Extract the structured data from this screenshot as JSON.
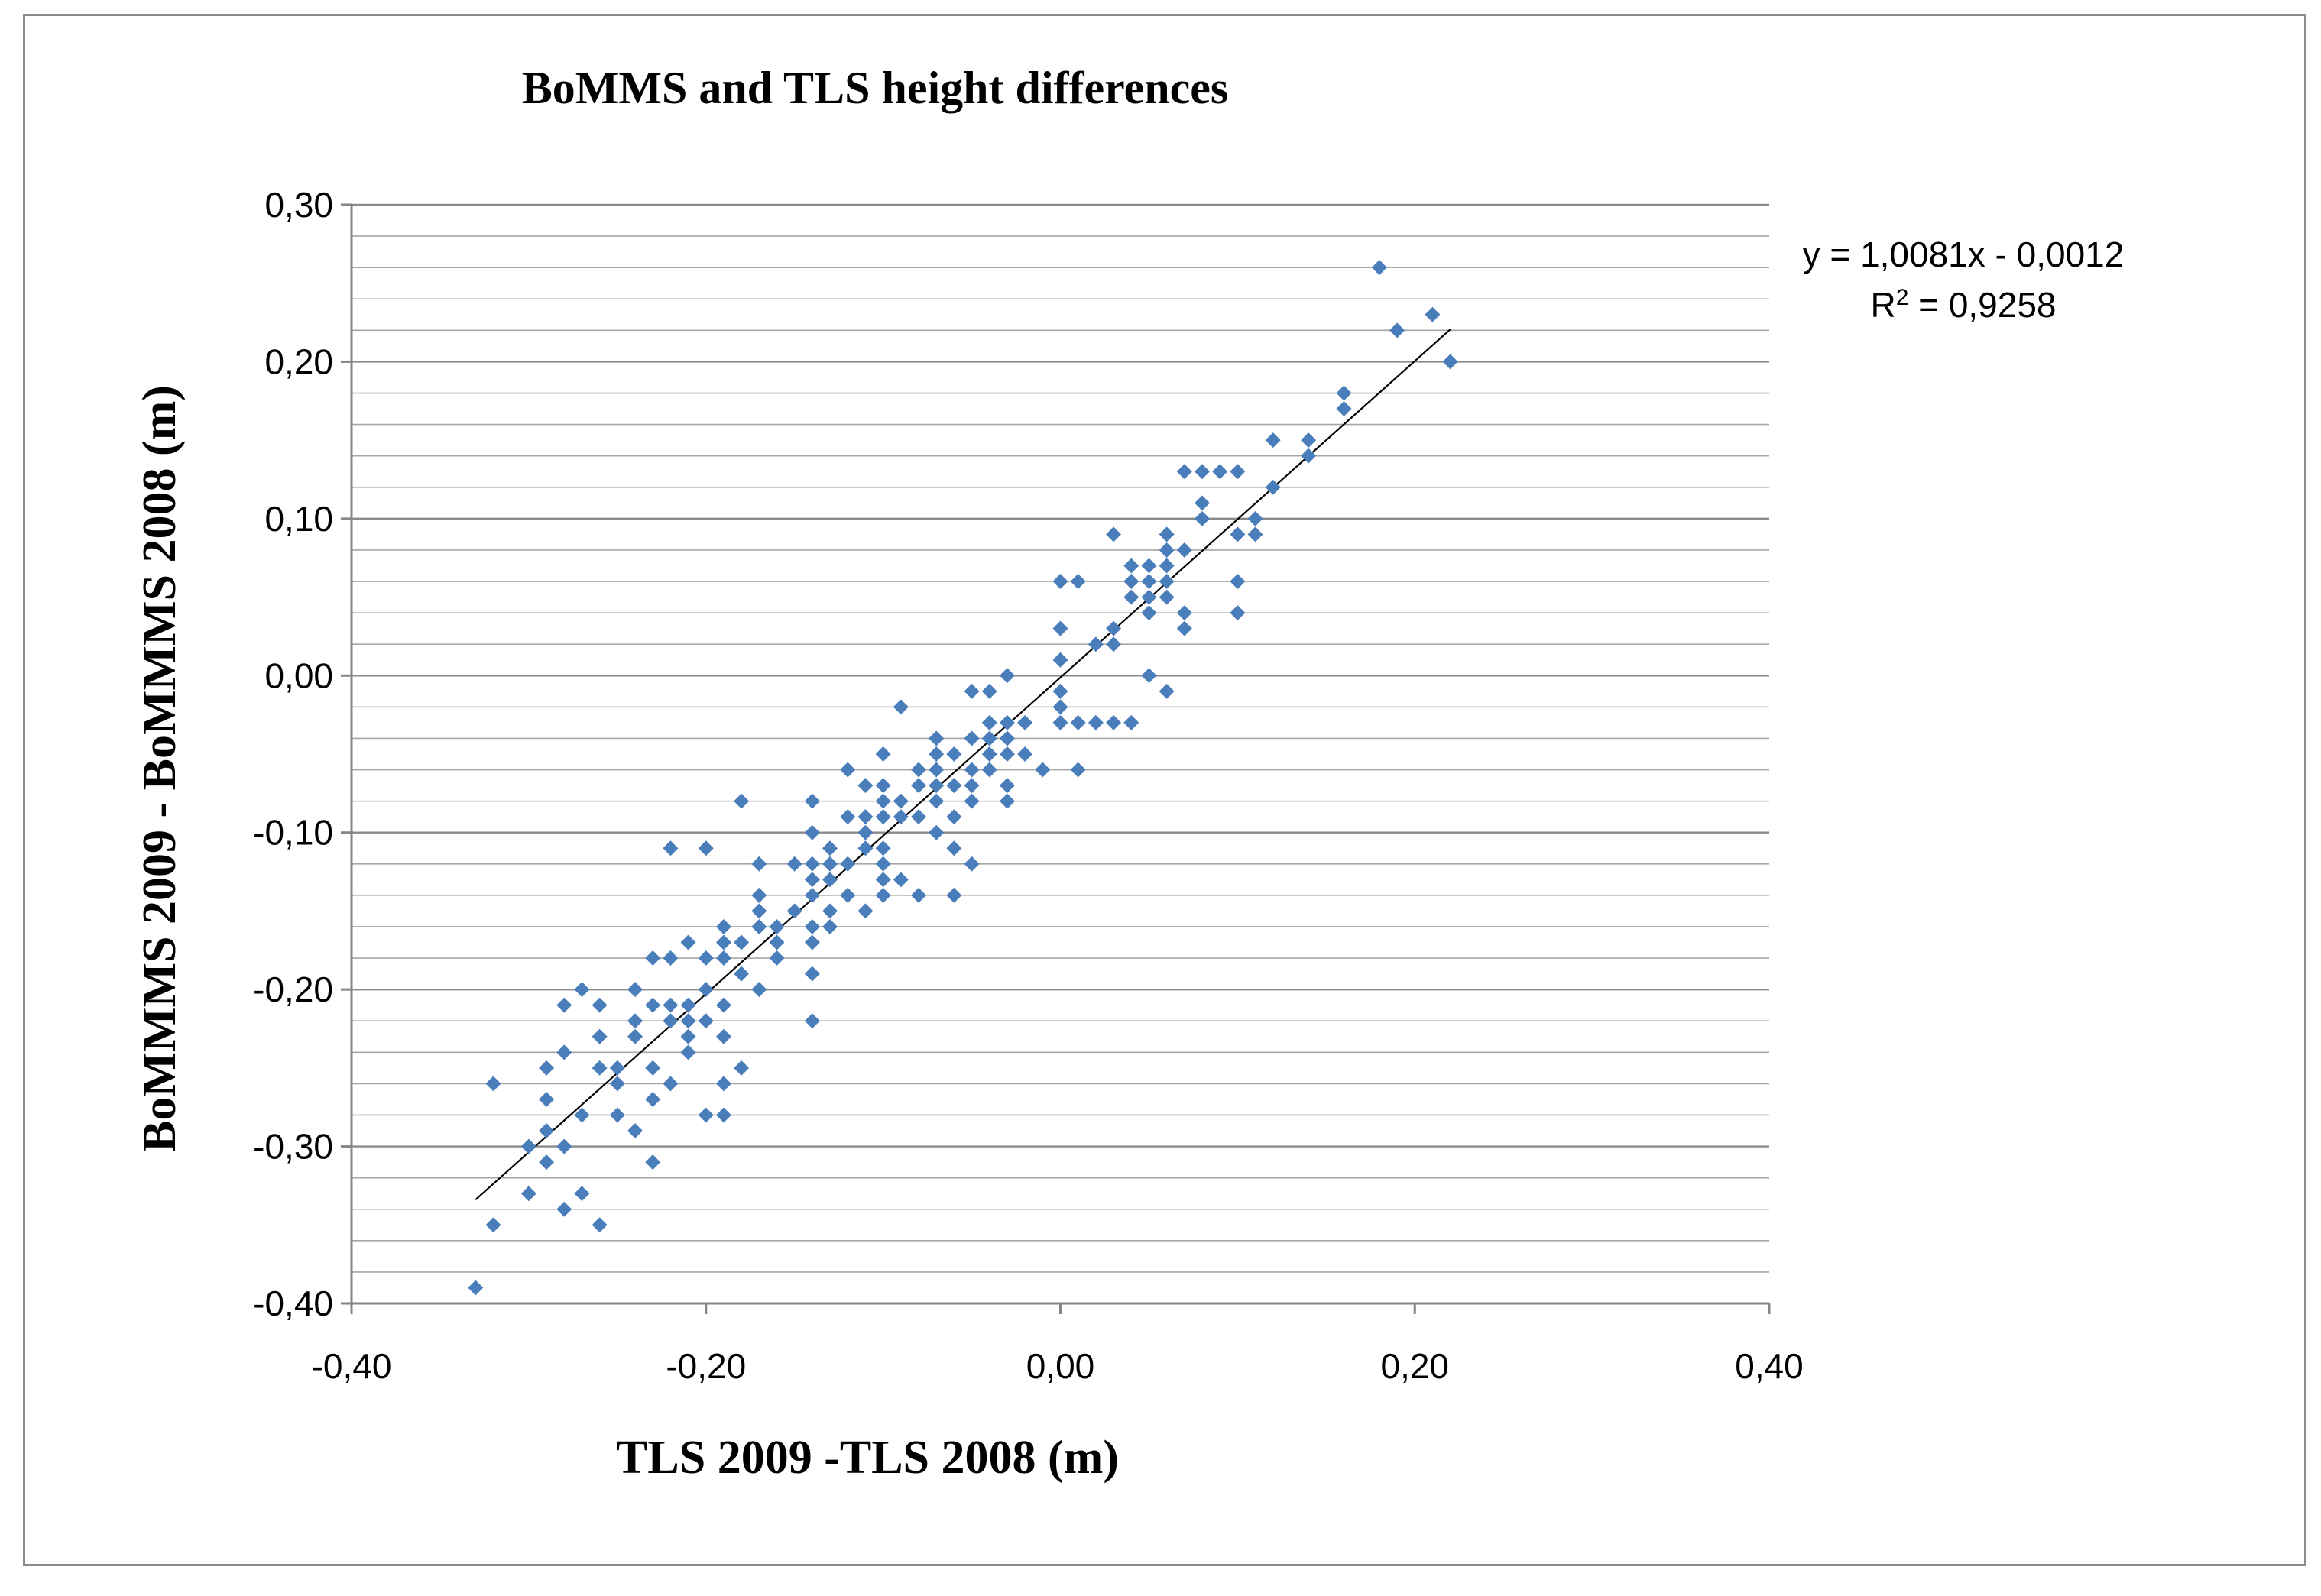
{
  "chart_data": {
    "type": "scatter",
    "title": "BoMMS and TLS height differences",
    "xlabel": "TLS 2009 -TLS 2008 (m)",
    "ylabel": "BoMMMS 2009 -  BoMMMS 2008 (m)",
    "xlim": [
      -0.4,
      0.4
    ],
    "ylim": [
      -0.4,
      0.3
    ],
    "x_ticks": [
      -0.4,
      -0.2,
      0.0,
      0.2,
      0.4
    ],
    "x_tick_labels": [
      "-0,40",
      "-0,20",
      "0,00",
      "0,20",
      "0,40"
    ],
    "y_ticks": [
      0.3,
      0.2,
      0.1,
      0.0,
      -0.1,
      -0.2,
      -0.3,
      -0.4
    ],
    "y_tick_labels": [
      "0,30",
      "0,20",
      "0,10",
      "0,00",
      "-0,10",
      "-0,20",
      "-0,30",
      "-0,40"
    ],
    "minor_gridline_step": 0.02,
    "major_gridline_step": 0.1,
    "grid": true,
    "marker": "diamond",
    "series": [
      {
        "name": "height differences",
        "color": "#4a7ebb",
        "points": [
          [
            0.18,
            0.26
          ],
          [
            0.21,
            0.23
          ],
          [
            0.19,
            0.22
          ],
          [
            0.22,
            0.2
          ],
          [
            0.16,
            0.18
          ],
          [
            0.16,
            0.17
          ],
          [
            0.12,
            0.15
          ],
          [
            0.14,
            0.15
          ],
          [
            0.14,
            0.14
          ],
          [
            0.07,
            0.13
          ],
          [
            0.08,
            0.13
          ],
          [
            0.09,
            0.13
          ],
          [
            0.1,
            0.13
          ],
          [
            0.12,
            0.12
          ],
          [
            0.08,
            0.11
          ],
          [
            0.08,
            0.1
          ],
          [
            0.11,
            0.1
          ],
          [
            0.03,
            0.09
          ],
          [
            0.06,
            0.09
          ],
          [
            0.1,
            0.09
          ],
          [
            0.11,
            0.09
          ],
          [
            0.06,
            0.08
          ],
          [
            0.07,
            0.08
          ],
          [
            0.04,
            0.07
          ],
          [
            0.05,
            0.07
          ],
          [
            0.06,
            0.07
          ],
          [
            0.04,
            0.06
          ],
          [
            0.05,
            0.06
          ],
          [
            0.06,
            0.06
          ],
          [
            0.1,
            0.06
          ],
          [
            0.0,
            0.06
          ],
          [
            0.01,
            0.06
          ],
          [
            0.04,
            0.05
          ],
          [
            0.05,
            0.05
          ],
          [
            0.06,
            0.05
          ],
          [
            0.05,
            0.04
          ],
          [
            0.07,
            0.04
          ],
          [
            0.1,
            0.04
          ],
          [
            0.03,
            0.03
          ],
          [
            0.07,
            0.03
          ],
          [
            0.0,
            0.03
          ],
          [
            0.02,
            0.02
          ],
          [
            0.03,
            0.02
          ],
          [
            0.0,
            0.01
          ],
          [
            0.05,
            0.0
          ],
          [
            -0.03,
            0.0
          ],
          [
            0.06,
            -0.01
          ],
          [
            0.0,
            -0.01
          ],
          [
            -0.04,
            -0.01
          ],
          [
            -0.05,
            -0.01
          ],
          [
            0.0,
            -0.02
          ],
          [
            -0.09,
            -0.02
          ],
          [
            0.0,
            -0.03
          ],
          [
            0.01,
            -0.03
          ],
          [
            0.02,
            -0.03
          ],
          [
            0.03,
            -0.03
          ],
          [
            0.04,
            -0.03
          ],
          [
            -0.02,
            -0.03
          ],
          [
            -0.03,
            -0.03
          ],
          [
            -0.04,
            -0.03
          ],
          [
            -0.03,
            -0.04
          ],
          [
            -0.04,
            -0.04
          ],
          [
            -0.05,
            -0.04
          ],
          [
            -0.07,
            -0.04
          ],
          [
            -0.02,
            -0.05
          ],
          [
            -0.03,
            -0.05
          ],
          [
            -0.04,
            -0.05
          ],
          [
            -0.06,
            -0.05
          ],
          [
            -0.07,
            -0.05
          ],
          [
            -0.1,
            -0.05
          ],
          [
            0.01,
            -0.06
          ],
          [
            -0.01,
            -0.06
          ],
          [
            -0.04,
            -0.06
          ],
          [
            -0.05,
            -0.06
          ],
          [
            -0.07,
            -0.06
          ],
          [
            -0.08,
            -0.06
          ],
          [
            -0.12,
            -0.06
          ],
          [
            -0.03,
            -0.07
          ],
          [
            -0.05,
            -0.07
          ],
          [
            -0.06,
            -0.07
          ],
          [
            -0.07,
            -0.07
          ],
          [
            -0.08,
            -0.07
          ],
          [
            -0.1,
            -0.07
          ],
          [
            -0.11,
            -0.07
          ],
          [
            -0.03,
            -0.08
          ],
          [
            -0.05,
            -0.08
          ],
          [
            -0.07,
            -0.08
          ],
          [
            -0.09,
            -0.08
          ],
          [
            -0.1,
            -0.08
          ],
          [
            -0.14,
            -0.08
          ],
          [
            -0.18,
            -0.08
          ],
          [
            -0.06,
            -0.09
          ],
          [
            -0.08,
            -0.09
          ],
          [
            -0.09,
            -0.09
          ],
          [
            -0.1,
            -0.09
          ],
          [
            -0.11,
            -0.09
          ],
          [
            -0.12,
            -0.09
          ],
          [
            -0.07,
            -0.1
          ],
          [
            -0.11,
            -0.1
          ],
          [
            -0.14,
            -0.1
          ],
          [
            -0.06,
            -0.11
          ],
          [
            -0.1,
            -0.11
          ],
          [
            -0.11,
            -0.11
          ],
          [
            -0.13,
            -0.11
          ],
          [
            -0.2,
            -0.11
          ],
          [
            -0.22,
            -0.11
          ],
          [
            -0.05,
            -0.12
          ],
          [
            -0.1,
            -0.12
          ],
          [
            -0.12,
            -0.12
          ],
          [
            -0.13,
            -0.12
          ],
          [
            -0.14,
            -0.12
          ],
          [
            -0.15,
            -0.12
          ],
          [
            -0.17,
            -0.12
          ],
          [
            -0.09,
            -0.13
          ],
          [
            -0.1,
            -0.13
          ],
          [
            -0.13,
            -0.13
          ],
          [
            -0.14,
            -0.13
          ],
          [
            -0.06,
            -0.14
          ],
          [
            -0.08,
            -0.14
          ],
          [
            -0.1,
            -0.14
          ],
          [
            -0.12,
            -0.14
          ],
          [
            -0.14,
            -0.14
          ],
          [
            -0.17,
            -0.14
          ],
          [
            -0.11,
            -0.15
          ],
          [
            -0.13,
            -0.15
          ],
          [
            -0.15,
            -0.15
          ],
          [
            -0.17,
            -0.15
          ],
          [
            -0.13,
            -0.16
          ],
          [
            -0.14,
            -0.16
          ],
          [
            -0.16,
            -0.16
          ],
          [
            -0.17,
            -0.16
          ],
          [
            -0.19,
            -0.16
          ],
          [
            -0.14,
            -0.17
          ],
          [
            -0.16,
            -0.17
          ],
          [
            -0.18,
            -0.17
          ],
          [
            -0.19,
            -0.17
          ],
          [
            -0.21,
            -0.17
          ],
          [
            -0.16,
            -0.18
          ],
          [
            -0.19,
            -0.18
          ],
          [
            -0.2,
            -0.18
          ],
          [
            -0.22,
            -0.18
          ],
          [
            -0.23,
            -0.18
          ],
          [
            -0.14,
            -0.19
          ],
          [
            -0.18,
            -0.19
          ],
          [
            -0.17,
            -0.2
          ],
          [
            -0.2,
            -0.2
          ],
          [
            -0.24,
            -0.2
          ],
          [
            -0.27,
            -0.2
          ],
          [
            -0.19,
            -0.21
          ],
          [
            -0.21,
            -0.21
          ],
          [
            -0.22,
            -0.21
          ],
          [
            -0.23,
            -0.21
          ],
          [
            -0.26,
            -0.21
          ],
          [
            -0.28,
            -0.21
          ],
          [
            -0.14,
            -0.22
          ],
          [
            -0.2,
            -0.22
          ],
          [
            -0.21,
            -0.22
          ],
          [
            -0.22,
            -0.22
          ],
          [
            -0.24,
            -0.22
          ],
          [
            -0.19,
            -0.23
          ],
          [
            -0.21,
            -0.23
          ],
          [
            -0.24,
            -0.23
          ],
          [
            -0.26,
            -0.23
          ],
          [
            -0.21,
            -0.24
          ],
          [
            -0.28,
            -0.24
          ],
          [
            -0.18,
            -0.25
          ],
          [
            -0.23,
            -0.25
          ],
          [
            -0.25,
            -0.25
          ],
          [
            -0.26,
            -0.25
          ],
          [
            -0.29,
            -0.25
          ],
          [
            -0.19,
            -0.26
          ],
          [
            -0.22,
            -0.26
          ],
          [
            -0.25,
            -0.26
          ],
          [
            -0.32,
            -0.26
          ],
          [
            -0.23,
            -0.27
          ],
          [
            -0.29,
            -0.27
          ],
          [
            -0.2,
            -0.28
          ],
          [
            -0.25,
            -0.28
          ],
          [
            -0.27,
            -0.28
          ],
          [
            -0.19,
            -0.28
          ],
          [
            -0.24,
            -0.29
          ],
          [
            -0.29,
            -0.29
          ],
          [
            -0.3,
            -0.3
          ],
          [
            -0.28,
            -0.3
          ],
          [
            -0.23,
            -0.31
          ],
          [
            -0.29,
            -0.31
          ],
          [
            -0.27,
            -0.33
          ],
          [
            -0.3,
            -0.33
          ],
          [
            -0.28,
            -0.34
          ],
          [
            -0.32,
            -0.35
          ],
          [
            -0.26,
            -0.35
          ],
          [
            -0.33,
            -0.39
          ]
        ]
      }
    ],
    "trendline": {
      "type": "linear",
      "slope": 1.0081,
      "intercept": -0.0012,
      "x_range": [
        -0.33,
        0.22
      ],
      "color": "#000000",
      "equation_label": "y = 1,0081x - 0,0012",
      "r2_prefix": "R",
      "r2_sup": "2",
      "r2_value": " = 0,9258"
    }
  }
}
